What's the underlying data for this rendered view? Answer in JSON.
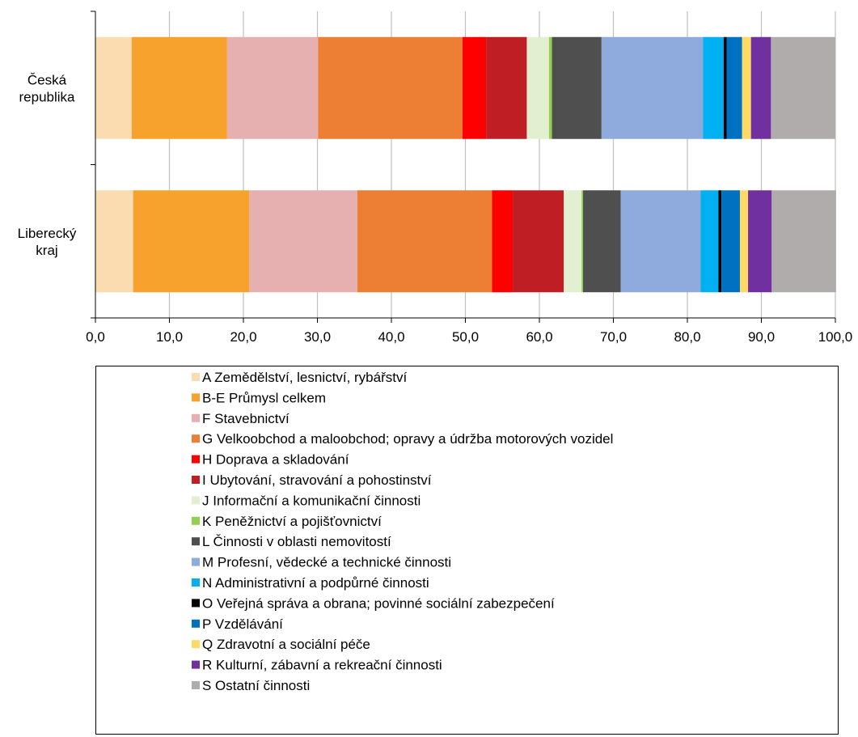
{
  "chart_data": {
    "type": "bar",
    "orientation": "horizontal",
    "stacked": true,
    "categories": [
      [
        "Česká",
        "republika"
      ],
      [
        "Liberecký",
        "kraj"
      ]
    ],
    "xlim": [
      0,
      100
    ],
    "x_ticks": [
      "0,0",
      "10,0",
      "20,0",
      "30,0",
      "40,0",
      "50,0",
      "60,0",
      "70,0",
      "80,0",
      "90,0",
      "100,0"
    ],
    "grid": "vertical",
    "legend_position": "bottom",
    "series": [
      {
        "name": "A Zemědělství, lesnictví, rybářství",
        "color": "#FBDCB0",
        "values": [
          4.9,
          5.1
        ]
      },
      {
        "name": "B-E Průmysl celkem",
        "color": "#F7A22C",
        "values": [
          12.9,
          15.7
        ]
      },
      {
        "name": "F Stavebnictví",
        "color": "#E6B0B0",
        "values": [
          12.3,
          14.6
        ]
      },
      {
        "name": "G Velkoobchod a maloobchod; opravy a údržba motorových vozidel",
        "color": "#ED7F35",
        "values": [
          19.5,
          18.2
        ]
      },
      {
        "name": "H Doprava a skladování",
        "color": "#FF0000",
        "values": [
          3.2,
          2.8
        ]
      },
      {
        "name": "I Ubytování, stravování a pohostinství",
        "color": "#BF1E24",
        "values": [
          5.5,
          6.9
        ]
      },
      {
        "name": "J Informační a komunikační činnosti",
        "color": "#E2EFD0",
        "values": [
          3.0,
          2.4
        ]
      },
      {
        "name": "K Peněžnictví a pojišťovnictví",
        "color": "#92D050",
        "values": [
          0.4,
          0.2
        ]
      },
      {
        "name": "L Činnosti v oblasti nemovitostí",
        "color": "#4F4F4F",
        "values": [
          6.7,
          5.1
        ]
      },
      {
        "name": "M Profesní, vědecké a technické činnosti",
        "color": "#8FAADC",
        "values": [
          13.7,
          10.8
        ]
      },
      {
        "name": "N Administrativní a podpůrné činnosti",
        "color": "#00B0F0",
        "values": [
          2.8,
          2.4
        ]
      },
      {
        "name": "O Veřejná správa a obrana; povinné sociální zabezpečení",
        "color": "#000000",
        "values": [
          0.4,
          0.4
        ]
      },
      {
        "name": "P Vzdělávání",
        "color": "#0070C0",
        "values": [
          2.1,
          2.5
        ]
      },
      {
        "name": "Q Zdravotní a sociální péče",
        "color": "#FFD966",
        "values": [
          1.2,
          1.1
        ]
      },
      {
        "name": "R Kulturní, zábavní a rekreační činnosti",
        "color": "#7030A0",
        "values": [
          2.7,
          3.2
        ]
      },
      {
        "name": "S Ostatní činnosti",
        "color": "#B0ACAC",
        "values": [
          8.7,
          8.7
        ]
      }
    ]
  }
}
